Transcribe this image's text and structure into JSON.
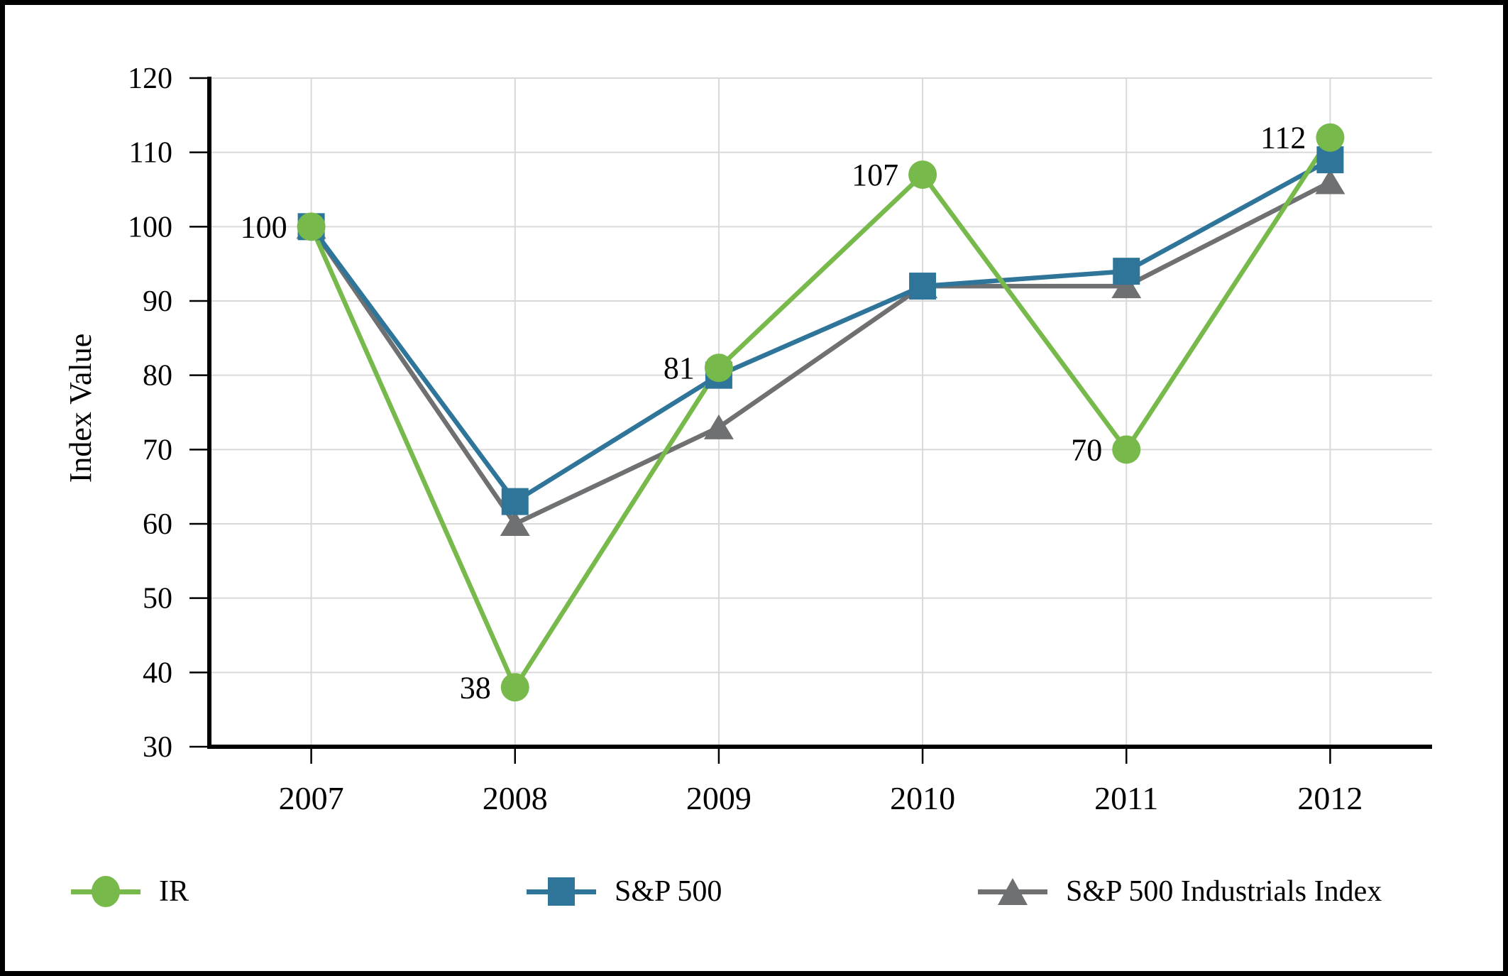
{
  "chart_data": {
    "type": "line",
    "title": "",
    "xlabel": "",
    "ylabel": "Index Value",
    "categories": [
      "2007",
      "2008",
      "2009",
      "2010",
      "2011",
      "2012"
    ],
    "ylim": [
      30,
      120
    ],
    "ytick_step": 10,
    "grid": true,
    "legend_position": "bottom",
    "series": [
      {
        "name": "IR",
        "marker": "circle",
        "color": "#77ba4b",
        "values": [
          100,
          38,
          81,
          107,
          70,
          112
        ],
        "data_labels": [
          100,
          38,
          81,
          107,
          70,
          112
        ]
      },
      {
        "name": "S&P 500",
        "marker": "square",
        "color": "#2e7599",
        "values": [
          100,
          63,
          80,
          92,
          94,
          109
        ],
        "data_labels": null
      },
      {
        "name": "S&P 500 Industrials Index",
        "marker": "triangle",
        "color": "#6f7072",
        "values": [
          100,
          60,
          73,
          92,
          92,
          106
        ],
        "data_labels": null
      }
    ]
  },
  "styles": {
    "grid_color": "#d9d9d9",
    "axis_color": "#000000",
    "text_color": "#000000",
    "background": "#ffffff",
    "frame_color": "#000000"
  }
}
